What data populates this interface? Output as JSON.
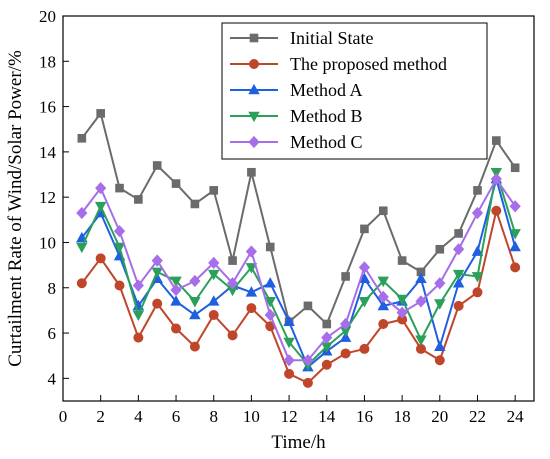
{
  "chart_data": {
    "type": "line",
    "xlabel": "Time/h",
    "ylabel": "Curtailment Rate of Wind/Solar Power/%",
    "xlim": [
      0,
      25
    ],
    "ylim": [
      3,
      20
    ],
    "x_ticks": [
      0,
      2,
      4,
      6,
      8,
      10,
      12,
      14,
      16,
      18,
      20,
      22,
      24
    ],
    "y_ticks": [
      4,
      6,
      8,
      10,
      12,
      14,
      16,
      18,
      20
    ],
    "legend_position": "top-right",
    "x": [
      1,
      2,
      3,
      4,
      5,
      6,
      7,
      8,
      9,
      10,
      11,
      12,
      13,
      14,
      15,
      16,
      17,
      18,
      19,
      20,
      21,
      22,
      23,
      24
    ],
    "series": [
      {
        "name": "Initial State",
        "color": "#6b6b6b",
        "marker": "square",
        "values": [
          14.6,
          15.7,
          12.4,
          11.9,
          13.4,
          12.6,
          11.7,
          12.3,
          9.2,
          13.1,
          9.8,
          6.5,
          7.2,
          6.4,
          8.5,
          10.6,
          11.4,
          9.2,
          8.7,
          9.7,
          10.4,
          12.3,
          14.5,
          13.3
        ]
      },
      {
        "name": "The proposed method",
        "color": "#c0462b",
        "marker": "circle",
        "values": [
          8.2,
          9.3,
          8.1,
          5.8,
          7.3,
          6.2,
          5.4,
          6.8,
          5.9,
          7.1,
          6.3,
          4.2,
          3.8,
          4.6,
          5.1,
          5.3,
          6.4,
          6.6,
          5.3,
          4.8,
          7.2,
          7.8,
          11.4,
          8.9
        ]
      },
      {
        "name": "Method A",
        "color": "#1f5fe0",
        "marker": "triangle-up",
        "values": [
          10.2,
          11.3,
          9.4,
          7.2,
          8.4,
          7.4,
          6.8,
          7.4,
          8.1,
          7.8,
          8.2,
          6.5,
          4.5,
          5.2,
          5.8,
          8.4,
          7.2,
          7.4,
          8.4,
          5.4,
          8.2,
          9.6,
          12.8,
          9.8
        ]
      },
      {
        "name": "Method B",
        "color": "#2aa05a",
        "marker": "triangle-down",
        "values": [
          9.8,
          11.6,
          9.8,
          6.8,
          8.7,
          8.3,
          7.4,
          8.6,
          7.9,
          8.9,
          7.4,
          5.6,
          4.6,
          5.4,
          6.1,
          7.4,
          8.3,
          7.5,
          5.7,
          7.3,
          8.6,
          8.5,
          13.1,
          10.4
        ]
      },
      {
        "name": "Method C",
        "color": "#a66ee8",
        "marker": "diamond",
        "values": [
          11.3,
          12.4,
          10.5,
          8.1,
          9.2,
          7.9,
          8.3,
          9.1,
          8.2,
          9.6,
          6.8,
          4.8,
          4.8,
          5.8,
          6.4,
          8.9,
          7.6,
          6.9,
          7.4,
          8.2,
          9.7,
          11.3,
          12.8,
          11.6
        ]
      }
    ]
  }
}
